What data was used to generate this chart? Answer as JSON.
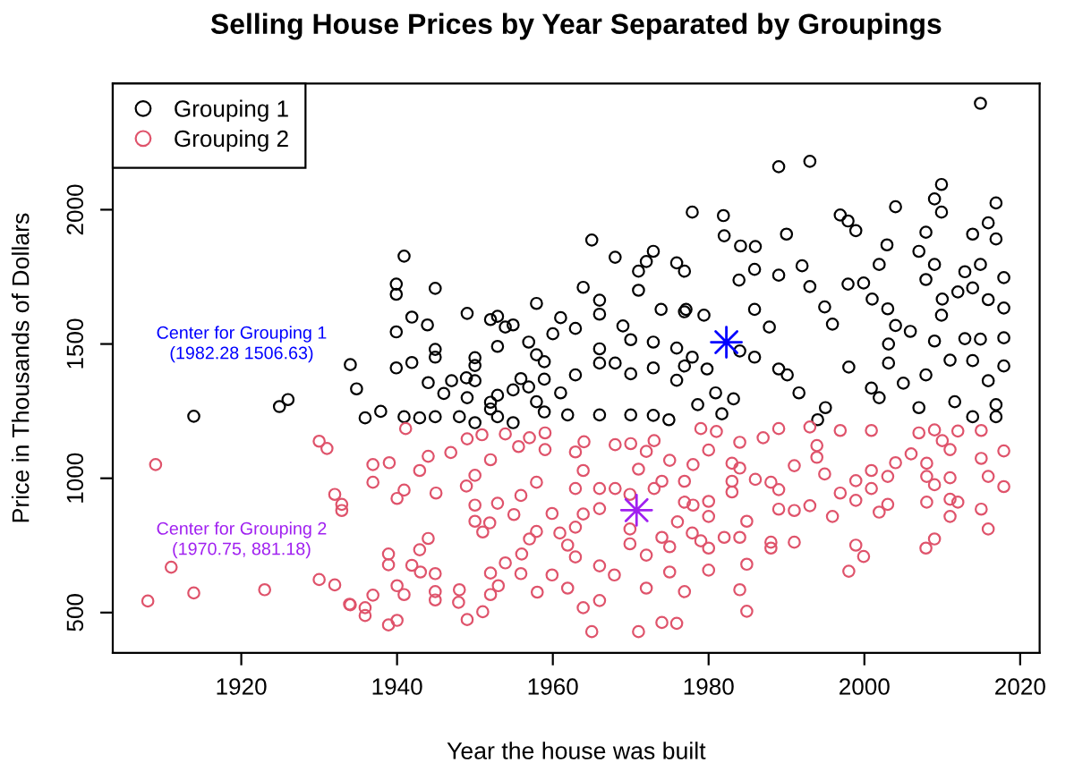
{
  "chart_data": {
    "type": "scatter",
    "title": "Selling House Prices by Year Separated by Groupings",
    "xlabel": "Year the house was built",
    "ylabel": "Price in Thousands of Dollars",
    "xlim": [
      1903.5,
      2022.5
    ],
    "ylim": [
      350,
      2470
    ],
    "xticks": [
      1920,
      1940,
      1960,
      1980,
      2000,
      2020
    ],
    "yticks": [
      500,
      1000,
      1500,
      2000
    ],
    "marker": "circle",
    "legend": "top left",
    "grid": false,
    "series": [
      {
        "name": "Grouping 1",
        "color": "#000000",
        "x": [
          1913.9,
          1924.9,
          1926.0,
          1934.0,
          1934.8,
          1935.9,
          1937.9,
          1939.9,
          1939.9,
          1940.9,
          1939.9,
          1939.9,
          1941.9,
          1941.9,
          1943.9,
          1944.9,
          1944.9,
          1944.9,
          1944.0,
          1946.0,
          1947.0,
          1949.0,
          1948.9,
          1950.0,
          1950.0,
          1950.0,
          1949.0,
          1952.0,
          1952.9,
          1953.9,
          1954.9,
          1952.9,
          1952.0,
          1952.0,
          1952.9,
          1954.9,
          1955.9,
          1956.9,
          1957.9,
          1958.9,
          1957.9,
          1960.0,
          1961.0,
          1958.9,
          1956.9,
          1957.9,
          1961.0,
          1962.9,
          1963.9,
          1962.9,
          1965.0,
          1966.0,
          1966.0,
          1966.0,
          1966.0,
          1968.0,
          1968.0,
          1969.0,
          1970.0,
          1970.0,
          1971.0,
          1971.0,
          1972.0,
          1972.9,
          1972.9,
          1972.9,
          1973.9,
          1975.9,
          1976.9,
          1977.9,
          1976.9,
          1975.9,
          1976.9,
          1975.9,
          1940.9,
          1942.9,
          1944.9,
          1948.0,
          1950.0,
          1952.9,
          1954.9,
          1958.9,
          1961.9,
          1966.0,
          1970.0,
          1972.9,
          1974.9,
          2014.9,
          1989.0,
          1993.0,
          1981.9,
          1990.0,
          1982.0,
          1984.1,
          1986.0,
          1985.9,
          1983.9,
          1989.0,
          1992.0,
          1996.9,
          1997.9,
          1998.9,
          2004.0,
          2002.9,
          2001.9,
          2009.9,
          2009.0,
          2009.9,
          2007.9,
          2007.0,
          2009.0,
          2016.9,
          2015.9,
          2013.9,
          2016.9,
          2014.9,
          2012.9,
          2017.9,
          1993.0,
          1994.9,
          1995.9,
          1997.9,
          1999.9,
          2001.0,
          2003.0,
          2004.0,
          2005.9,
          2003.1,
          2003.1,
          2007.9,
          2010.0,
          2012.0,
          2013.9,
          2015.9,
          2017.9,
          2009.0,
          2009.9,
          2012.9,
          2014.9,
          2017.9,
          2017.9,
          2013.9,
          2015.9,
          2016.9,
          2016.9,
          2007.9,
          2011.0,
          2005.0,
          1998.0,
          2000.9,
          2001.9,
          1995.0,
          1994.0,
          1977.1,
          1979.4,
          1977.9,
          1979.8,
          1984.0,
          1985.9,
          1987.8,
          1989.0,
          1985.9,
          1990.1,
          1980.9,
          1983.2,
          1991.6,
          1978.6,
          1981.7,
          2007.0,
          2011.6,
          2013.9
        ],
        "values": [
          1231,
          1267,
          1293,
          1423,
          1333,
          1225,
          1249,
          1723,
          1685,
          1827,
          1545,
          1411,
          1600,
          1431,
          1571,
          1707,
          1480,
          1451,
          1356,
          1316,
          1363,
          1614,
          1374,
          1449,
          1420,
          1363,
          1300,
          1591,
          1603,
          1563,
          1571,
          1491,
          1283,
          1258,
          1309,
          1329,
          1371,
          1507,
          1460,
          1434,
          1651,
          1538,
          1598,
          1369,
          1340,
          1285,
          1318,
          1558,
          1711,
          1385,
          1887,
          1663,
          1611,
          1482,
          1429,
          1429,
          1823,
          1567,
          1516,
          1389,
          1771,
          1700,
          1807,
          1845,
          1507,
          1411,
          1629,
          1802,
          1771,
          1991,
          1620,
          1485,
          1418,
          1365,
          1229,
          1225,
          1229,
          1229,
          1207,
          1229,
          1207,
          1247,
          1236,
          1236,
          1236,
          1234,
          1218,
          2396,
          2160,
          2180,
          1978,
          1909,
          1903,
          1865,
          1863,
          1778,
          1738,
          1756,
          1791,
          1980,
          1958,
          1922,
          2011,
          1869,
          1796,
          2094,
          2040,
          1991,
          1916,
          1845,
          1796,
          2025,
          1951,
          1909,
          1891,
          1796,
          1769,
          1747,
          1714,
          1638,
          1574,
          1723,
          1727,
          1667,
          1631,
          1569,
          1547,
          1500,
          1429,
          1740,
          1667,
          1694,
          1709,
          1665,
          1634,
          1511,
          1607,
          1520,
          1518,
          1523,
          1418,
          1438,
          1363,
          1274,
          1229,
          1385,
          1440,
          1354,
          1414,
          1336,
          1300,
          1263,
          1218,
          1629,
          1607,
          1451,
          1407,
          1474,
          1629,
          1563,
          1407,
          1451,
          1385,
          1318,
          1296,
          1318,
          1274,
          1240,
          1263,
          1285,
          1229
        ]
      },
      {
        "name": "Grouping 2",
        "color": "#df536b",
        "x": [
          1909.0,
          1911.0,
          1908.0,
          1913.9,
          1923.0,
          1930.0,
          1931.0,
          1932.0,
          1932.9,
          1932.9,
          1930.0,
          1932.0,
          1934.0,
          1936.9,
          1936.9,
          1939.0,
          1941.1,
          1944.0,
          1946.9,
          1949.0,
          1950.9,
          1953.9,
          1955.6,
          1957.0,
          1959.0,
          1959.0,
          1942.9,
          1940.9,
          1940.0,
          1945.0,
          1948.9,
          1950.0,
          1952.0,
          1950.0,
          1950.0,
          1952.9,
          1951.9,
          1951.0,
          1955.9,
          1955.0,
          1957.9,
          1959.9,
          1957.9,
          1960.9,
          1962.9,
          1963.9,
          1962.9,
          1964.0,
          1968.0,
          1970.0,
          1962.9,
          1962.9,
          1961.9,
          1963.9,
          1966.0,
          1966.0,
          1968.0,
          1969.9,
          1969.9,
          1969.9,
          1971.0,
          1972.0,
          1973.0,
          1973.0,
          1974.0,
          1975.0,
          1976.0,
          1975.0,
          1974.0,
          1976.9,
          1976.9,
          1933.9,
          1935.9,
          1935.9,
          1936.9,
          1938.9,
          1938.9,
          1941.9,
          1942.9,
          1944.0,
          1943.0,
          1940.0,
          1940.9,
          1940.0,
          1938.9,
          1944.9,
          1944.9,
          1944.9,
          1948.0,
          1947.9,
          1949.0,
          1951.0,
          1952.0,
          1953.0,
          1952.0,
          1953.9,
          1956.0,
          1955.9,
          1957.0,
          1958.0,
          1959.9,
          1961.9,
          1963.9,
          1965.0,
          1966.0,
          1966.0,
          1967.9,
          1971.0,
          1972.0,
          1974.0,
          1975.9,
          1976.9,
          1975.0,
          1972.0,
          1981.0,
          1979.0,
          1984.0,
          1987.0,
          1989.0,
          1993.0,
          1996.9,
          2000.9,
          2007.0,
          2009.0,
          2012.0,
          2015.0,
          1993.9,
          1993.9,
          1994.9,
          1996.9,
          1998.9,
          1998.9,
          2000.9,
          2000.9,
          2001.9,
          2003.0,
          2003.0,
          2004.0,
          2006.0,
          2008.0,
          2008.0,
          2008.0,
          2009.0,
          2010.0,
          2011.0,
          2011.0,
          2011.0,
          2011.0,
          2012.0,
          2015.0,
          2015.0,
          2015.9,
          2015.9,
          2017.9,
          2017.9,
          1978.0,
          1980.0,
          1983.0,
          1984.0,
          1983.0,
          1983.0,
          1986.0,
          1988.0,
          1989.0,
          1989.0,
          1991.0,
          1991.0,
          1993.0,
          1995.9,
          1978.0,
          1980.0,
          1980.0,
          1984.9,
          1977.9,
          1979.0,
          1980.0,
          1982.0,
          1984.0,
          1988.0,
          1988.0,
          1991.0,
          2007.9,
          2009.0,
          1998.9,
          1999.9,
          1998.0,
          1980.0,
          1984.9,
          1984.0,
          1984.9
        ],
        "values": [
          1051,
          669,
          543,
          573,
          585,
          1138,
          1111,
          940,
          903,
          880,
          623,
          603,
          529,
          1051,
          985,
          1058,
          1185,
          1082,
          1096,
          1147,
          1162,
          1165,
          1118,
          1151,
          1169,
          1107,
          1029,
          956,
          925,
          945,
          971,
          1011,
          1069,
          900,
          840,
          907,
          834,
          800,
          936,
          865,
          985,
          869,
          802,
          796,
          962,
          1029,
          1098,
          1136,
          1125,
          1129,
          818,
          707,
          751,
          867,
          887,
          962,
          962,
          940,
          811,
          756,
          1034,
          1100,
          1140,
          962,
          989,
          1067,
          838,
          745,
          780,
          989,
          911,
          531,
          518,
          489,
          565,
          718,
          678,
          676,
          734,
          776,
          651,
          600,
          567,
          471,
          454,
          645,
          578,
          547,
          585,
          538,
          474,
          503,
          567,
          600,
          647,
          685,
          718,
          645,
          774,
          576,
          640,
          591,
          518,
          429,
          545,
          674,
          640,
          429,
          591,
          463,
          460,
          578,
          651,
          714,
          1174,
          1185,
          1134,
          1151,
          1185,
          1191,
          1178,
          1178,
          1169,
          1180,
          1176,
          1178,
          1122,
          1078,
          1016,
          945,
          991,
          918,
          1029,
          962,
          874,
          1007,
          903,
          1058,
          1091,
          1056,
          1007,
          911,
          976,
          1140,
          1107,
          1002,
          922,
          858,
          911,
          1074,
          885,
          1007,
          811,
          1102,
          969,
          1051,
          1105,
          1056,
          1038,
          989,
          949,
          996,
          985,
          958,
          885,
          1047,
          880,
          898,
          858,
          900,
          914,
          858,
          840,
          796,
          767,
          740,
          780,
          780,
          762,
          740,
          762,
          740,
          774,
          751,
          709,
          654,
          658,
          680,
          585,
          505
        ]
      },
      {
        "color": "#0000ff",
        "marker": "star",
        "x": [
          1982.28
        ],
        "values": [
          1506.63
        ]
      },
      {
        "color": "#a020f0",
        "marker": "star",
        "x": [
          1970.75
        ],
        "values": [
          881.18
        ]
      }
    ],
    "annotations": [
      "Center for Grouping 1\n(1982.28 1506.63)",
      "Center for Grouping 2\n(1970.75, 881.18)"
    ]
  }
}
